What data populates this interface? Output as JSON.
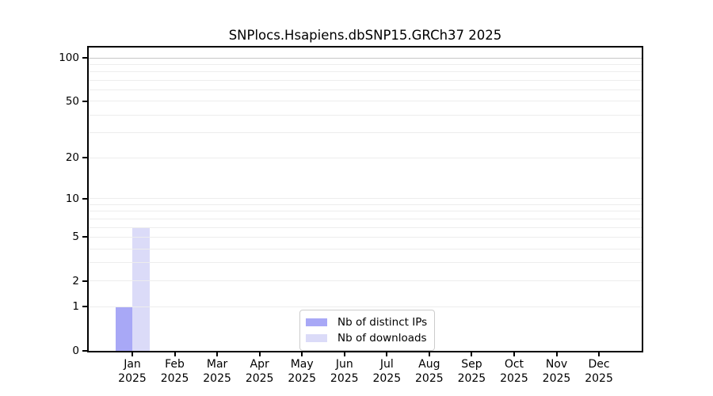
{
  "legend": {
    "items": [
      {
        "label": "Nb of distinct IPs",
        "color": "#a8a8f6"
      },
      {
        "label": "Nb of downloads",
        "color": "#dbdbf8"
      }
    ]
  },
  "chart_data": {
    "type": "bar",
    "title": "SNPlocs.Hsapiens.dbSNP15.GRCh37 2025",
    "xlabel": "",
    "ylabel": "",
    "categories": [
      "Jan 2025",
      "Feb 2025",
      "Mar 2025",
      "Apr 2025",
      "May 2025",
      "Jun 2025",
      "Jul 2025",
      "Aug 2025",
      "Sep 2025",
      "Oct 2025",
      "Nov 2025",
      "Dec 2025"
    ],
    "series": [
      {
        "name": "Nb of distinct IPs",
        "color": "#a8a8f6",
        "values": [
          1,
          0,
          0,
          0,
          0,
          0,
          0,
          0,
          0,
          0,
          0,
          0
        ]
      },
      {
        "name": "Nb of downloads",
        "color": "#dbdbf8",
        "values": [
          6,
          0,
          0,
          0,
          0,
          0,
          0,
          0,
          0,
          0,
          0,
          0
        ]
      }
    ],
    "yscale": "log1p",
    "ylim": [
      0,
      118
    ],
    "yticks": [
      0,
      1,
      2,
      5,
      10,
      20,
      50,
      100
    ],
    "grid_values": [
      1,
      2,
      3,
      4,
      5,
      6,
      7,
      8,
      9,
      10,
      20,
      30,
      40,
      50,
      60,
      70,
      80,
      90,
      100
    ],
    "grid_color": "#ededed",
    "grid_color_major": "#c6c6c6",
    "grid": true,
    "legend_position": "bottom-center"
  }
}
